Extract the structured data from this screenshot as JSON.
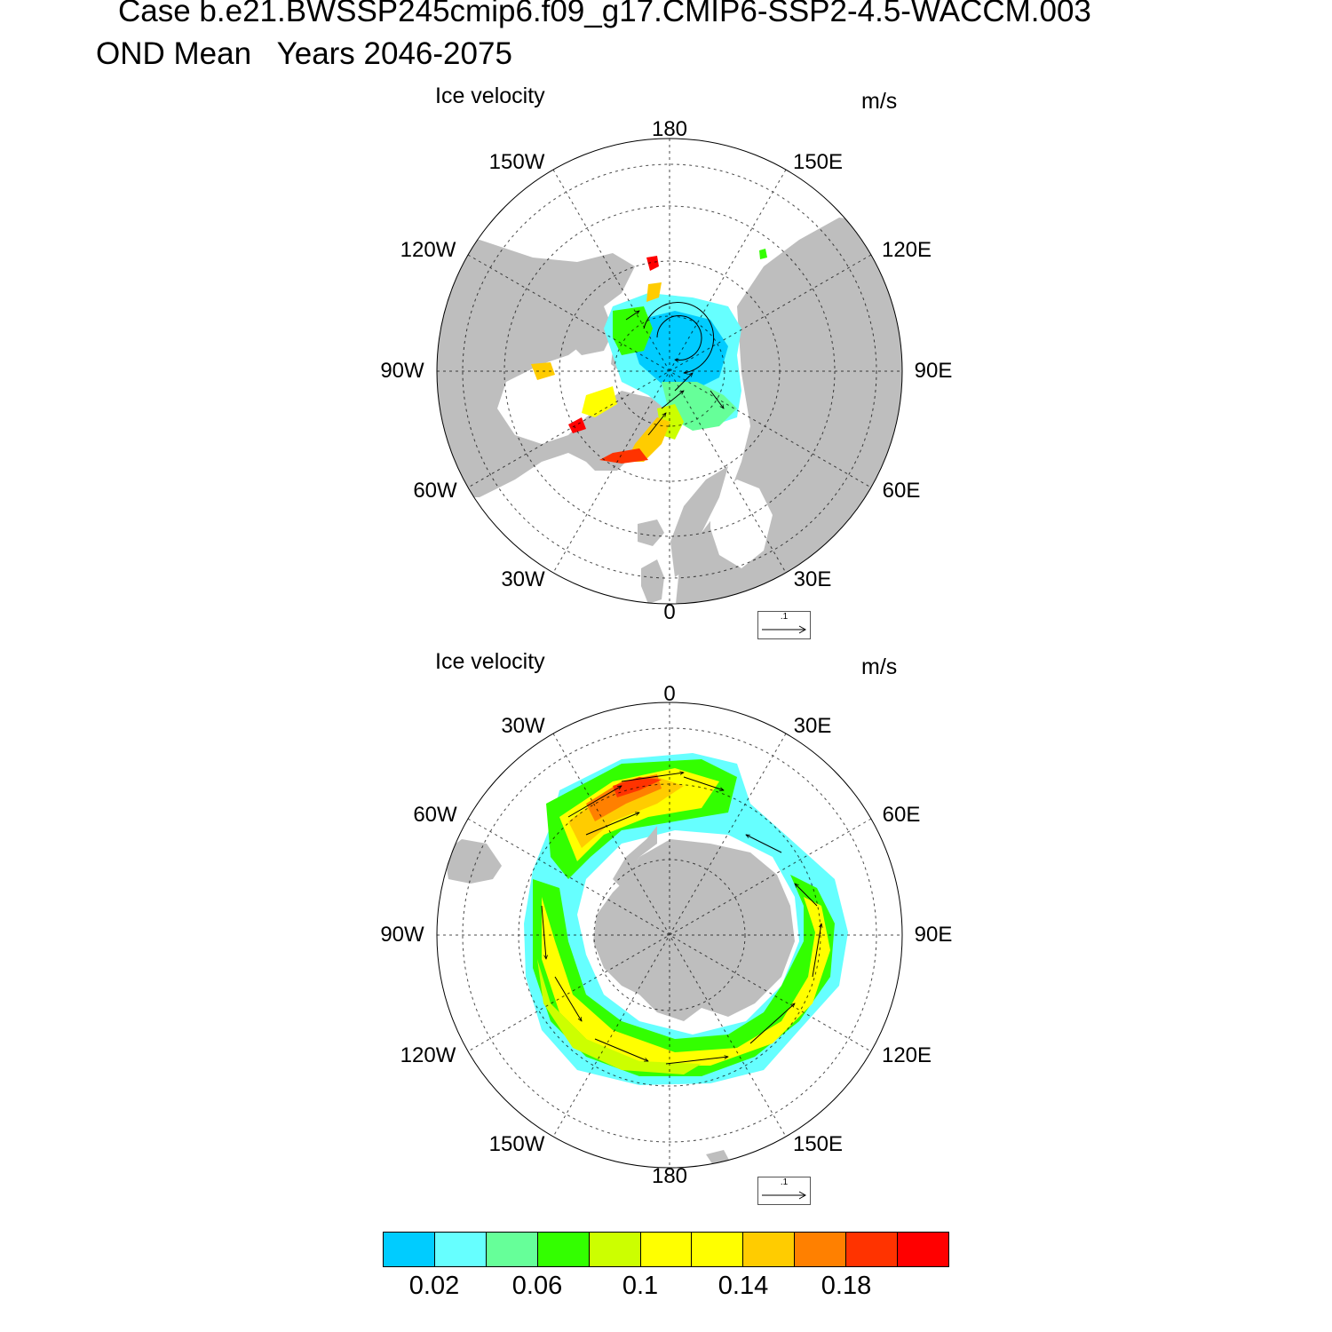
{
  "header": {
    "case_line": "Case b.e21.BWSSP245cmip6.f09_g17.CMIP6-SSP2-4.5-WACCM.003",
    "period_line": "OND Mean   Years 2046-2075"
  },
  "panels": [
    {
      "id": "north",
      "variable": "Ice velocity",
      "units": "m/s",
      "lon_labels": [
        "180",
        "150E",
        "120E",
        "90E",
        "60E",
        "30E",
        "0",
        "30W",
        "60W",
        "90W",
        "120W",
        "150W"
      ],
      "ref_vector": ".1"
    },
    {
      "id": "south",
      "variable": "Ice velocity",
      "units": "m/s",
      "lon_labels": [
        "0",
        "30E",
        "60E",
        "90E",
        "120E",
        "150E",
        "180",
        "150W",
        "120W",
        "90W",
        "60W",
        "30W"
      ],
      "ref_vector": ".1"
    }
  ],
  "colorbar": {
    "colors": [
      "#00ccff",
      "#66ffff",
      "#66ff99",
      "#33ff00",
      "#ccff00",
      "#ffff00",
      "#ffff00",
      "#ffcc00",
      "#ff8000",
      "#ff3300",
      "#ff0000"
    ],
    "labels": [
      "0.02",
      "0.06",
      "0.1",
      "0.14",
      "0.18"
    ]
  },
  "colors": {
    "land": "#bebebe",
    "grid": "#000000"
  }
}
